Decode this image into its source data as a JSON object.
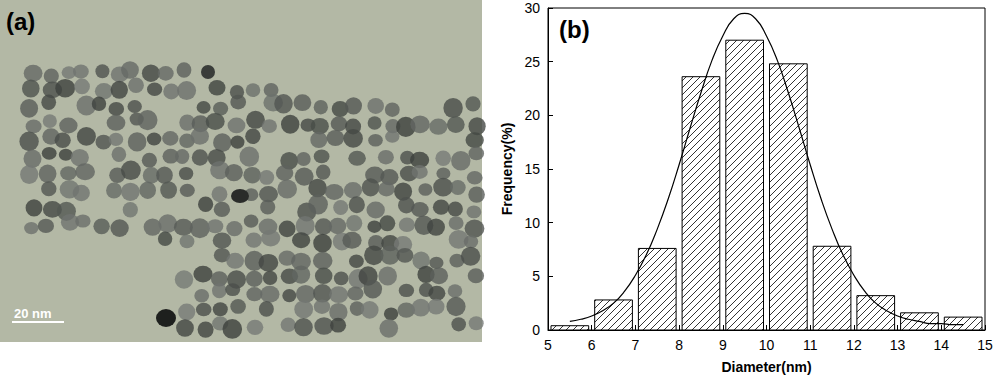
{
  "chart_data": {
    "type": "histogram",
    "title": "(b)",
    "x_label": "Diameter(nm)",
    "y_label": "Frequency(%)",
    "bins": [
      5,
      6,
      7,
      8,
      9,
      10,
      11,
      12,
      13,
      14,
      15
    ],
    "values": [
      0.4,
      2.8,
      7.6,
      23.6,
      27.0,
      24.8,
      7.8,
      3.2,
      1.6,
      1.2
    ],
    "color": "#000000",
    "xlim": [
      5,
      15
    ],
    "xticks": [
      5,
      6,
      7,
      8,
      9,
      10,
      11,
      12,
      13,
      14,
      15
    ],
    "ylim": [
      0,
      30
    ],
    "yticks": [
      0,
      5,
      10,
      15,
      20,
      25,
      30
    ],
    "fit": {
      "type": "line",
      "color": "#000000",
      "x": [
        5.5,
        5.75,
        6,
        6.25,
        6.5,
        6.75,
        7,
        7.25,
        7.5,
        7.75,
        8,
        8.25,
        8.5,
        8.75,
        9,
        9.25,
        9.5,
        9.75,
        10,
        10.25,
        10.5,
        10.75,
        11,
        11.25,
        11.5,
        11.75,
        12,
        12.25,
        12.5,
        12.75,
        13,
        13.25,
        13.5,
        13.75,
        14,
        14.25,
        14.5
      ],
      "values": [
        0.8,
        1.0,
        1.3,
        1.8,
        2.5,
        3.6,
        5.1,
        7.0,
        9.4,
        12.2,
        15.4,
        18.8,
        22.1,
        25.1,
        27.4,
        29.0,
        29.5,
        29.0,
        27.4,
        25.1,
        22.1,
        18.8,
        15.4,
        12.2,
        9.4,
        7.0,
        5.1,
        3.6,
        2.5,
        1.8,
        1.3,
        1.0,
        0.8,
        0.6,
        0.6,
        0.5,
        0.5
      ]
    }
  },
  "image_panel": {
    "label": "(a)",
    "scale_bar": "20 nm"
  }
}
